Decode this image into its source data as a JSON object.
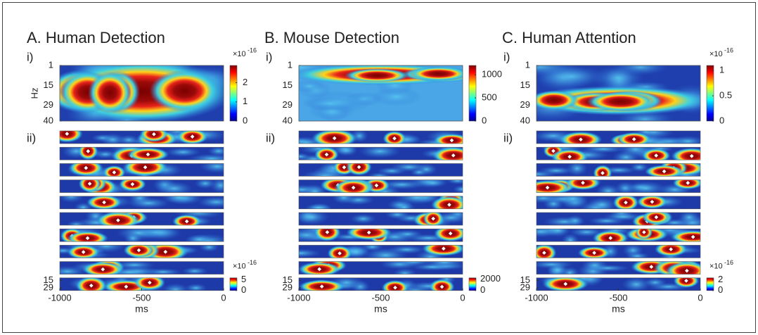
{
  "chart_data": [
    {
      "type": "heatmap",
      "title": "A. Human Detection",
      "top": {
        "label": "i)",
        "ylabel": "Hz",
        "ylim": [
          1,
          40
        ],
        "yticks": [
          1,
          15,
          29,
          40
        ],
        "clim": [
          0,
          2.9
        ],
        "cticks": [
          0,
          1,
          2
        ],
        "exponent_base": "×10",
        "exponent": "-16"
      },
      "bottom": {
        "label": "ii)",
        "ylim": [
          10,
          34
        ],
        "yticks": [
          15,
          29
        ],
        "xlabel": "ms",
        "xlim": [
          -1000,
          0
        ],
        "xticks": [
          -1000,
          -500,
          0
        ],
        "clim": [
          0,
          6
        ],
        "cticks": [
          0,
          5
        ],
        "exponent_base": "×10",
        "exponent": "-16"
      }
    },
    {
      "type": "heatmap",
      "title": "B. Mouse Detection",
      "top": {
        "label": "i)",
        "ylim": [
          1,
          40
        ],
        "yticks": [
          1,
          15,
          29,
          40
        ],
        "clim": [
          0,
          1200
        ],
        "cticks": [
          0,
          500,
          1000
        ]
      },
      "bottom": {
        "label": "ii)",
        "ylim": [
          10,
          34
        ],
        "yticks": [
          15,
          29
        ],
        "xlabel": "ms",
        "xlim": [
          -1000,
          0
        ],
        "xticks": [
          -1000,
          -500,
          0
        ],
        "clim": [
          0,
          2200
        ],
        "cticks": [
          0,
          2000
        ]
      }
    },
    {
      "type": "heatmap",
      "title": "C. Human Attention",
      "top": {
        "label": "i)",
        "ylim": [
          1,
          40
        ],
        "yticks": [
          1,
          15,
          29,
          40
        ],
        "clim": [
          0,
          1.1
        ],
        "cticks": [
          0,
          0.5,
          1
        ],
        "exponent_base": "×10",
        "exponent": "-16"
      },
      "bottom": {
        "label": "ii)",
        "ylim": [
          10,
          34
        ],
        "yticks": [
          15,
          29
        ],
        "xlabel": "ms",
        "xlim": [
          -1000,
          0
        ],
        "xticks": [
          -1000,
          -500,
          0
        ],
        "clim": [
          0,
          2.4
        ],
        "cticks": [
          0,
          2
        ],
        "exponent_base": "×10",
        "exponent": "-16"
      }
    }
  ]
}
